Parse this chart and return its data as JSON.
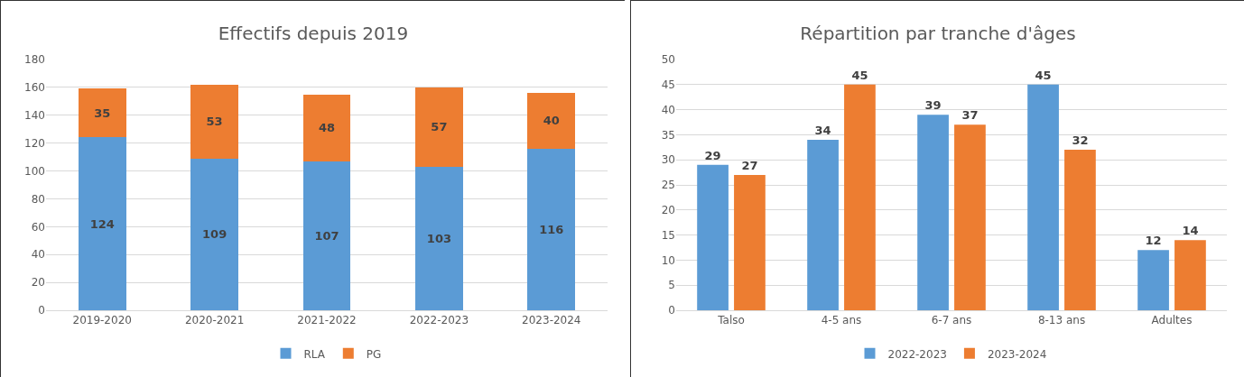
{
  "chart_data": [
    {
      "type": "bar",
      "title": "Effectifs depuis 2019",
      "categories": [
        "2019-2020",
        "2020-2021",
        "2021-2022",
        "2022-2023",
        "2023-2024"
      ],
      "stacked": true,
      "series": [
        {
          "name": "RLA",
          "color": "#5b9bd5",
          "values": [
            124,
            109,
            107,
            103,
            116
          ]
        },
        {
          "name": "PG",
          "color": "#ed7d31",
          "values": [
            35,
            53,
            48,
            57,
            40
          ]
        }
      ],
      "ylim": [
        0,
        180
      ],
      "yticks": [
        0,
        20,
        40,
        60,
        80,
        100,
        120,
        140,
        160,
        180
      ],
      "grid": "y",
      "legend": "bottom",
      "data_labels": true
    },
    {
      "type": "bar",
      "title": "Répartition par tranche d'âges",
      "categories": [
        "Talso",
        "4-5 ans",
        "6-7 ans",
        "8-13 ans",
        "Adultes"
      ],
      "series": [
        {
          "name": "2022-2023",
          "color": "#5b9bd5",
          "values": [
            29,
            34,
            39,
            45,
            12
          ]
        },
        {
          "name": "2023-2024",
          "color": "#ed7d31",
          "values": [
            27,
            45,
            37,
            32,
            14
          ]
        }
      ],
      "ylim": [
        0,
        50
      ],
      "yticks": [
        0,
        5,
        10,
        15,
        20,
        25,
        30,
        35,
        40,
        45,
        50
      ],
      "grid": "y",
      "legend": "bottom",
      "data_labels": true
    }
  ]
}
